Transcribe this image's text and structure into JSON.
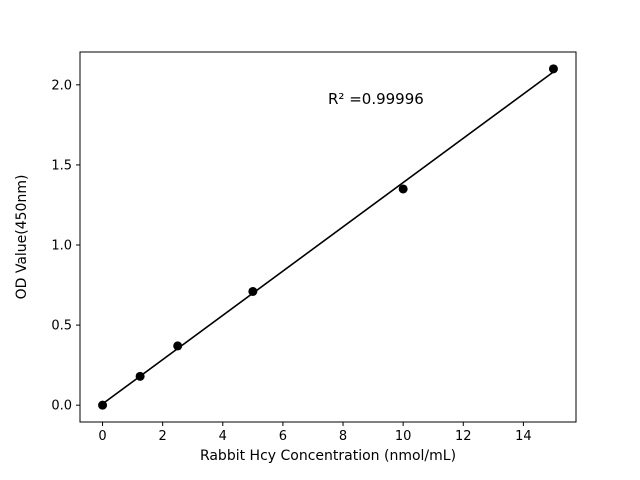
{
  "page": {
    "background": "#ffffff"
  },
  "chart_data": {
    "type": "scatter",
    "title": "",
    "xlabel": "Rabbit Hcy Concentration (nmol/mL)",
    "ylabel": "OD Value(450nm)",
    "annotation": {
      "text": "R² =0.99996",
      "x": 7.5,
      "y": 1.88
    },
    "x": [
      0,
      1.25,
      2.5,
      5,
      10,
      15
    ],
    "y": [
      0.0,
      0.18,
      0.37,
      0.71,
      1.35,
      2.1
    ],
    "fit_line": {
      "x1": 0,
      "y1": 0.008,
      "x2": 15,
      "y2": 2.081
    },
    "xticks": [
      0,
      2,
      4,
      6,
      8,
      10,
      12,
      14
    ],
    "yticks": [
      0.0,
      0.5,
      1.0,
      1.5,
      2.0
    ],
    "xlim": [
      -0.75,
      15.75
    ],
    "ylim": [
      -0.105,
      2.205
    ],
    "grid": false,
    "legend": null,
    "marker_color": "#000000",
    "line_color": "#000000",
    "axis_color": "#000000"
  }
}
